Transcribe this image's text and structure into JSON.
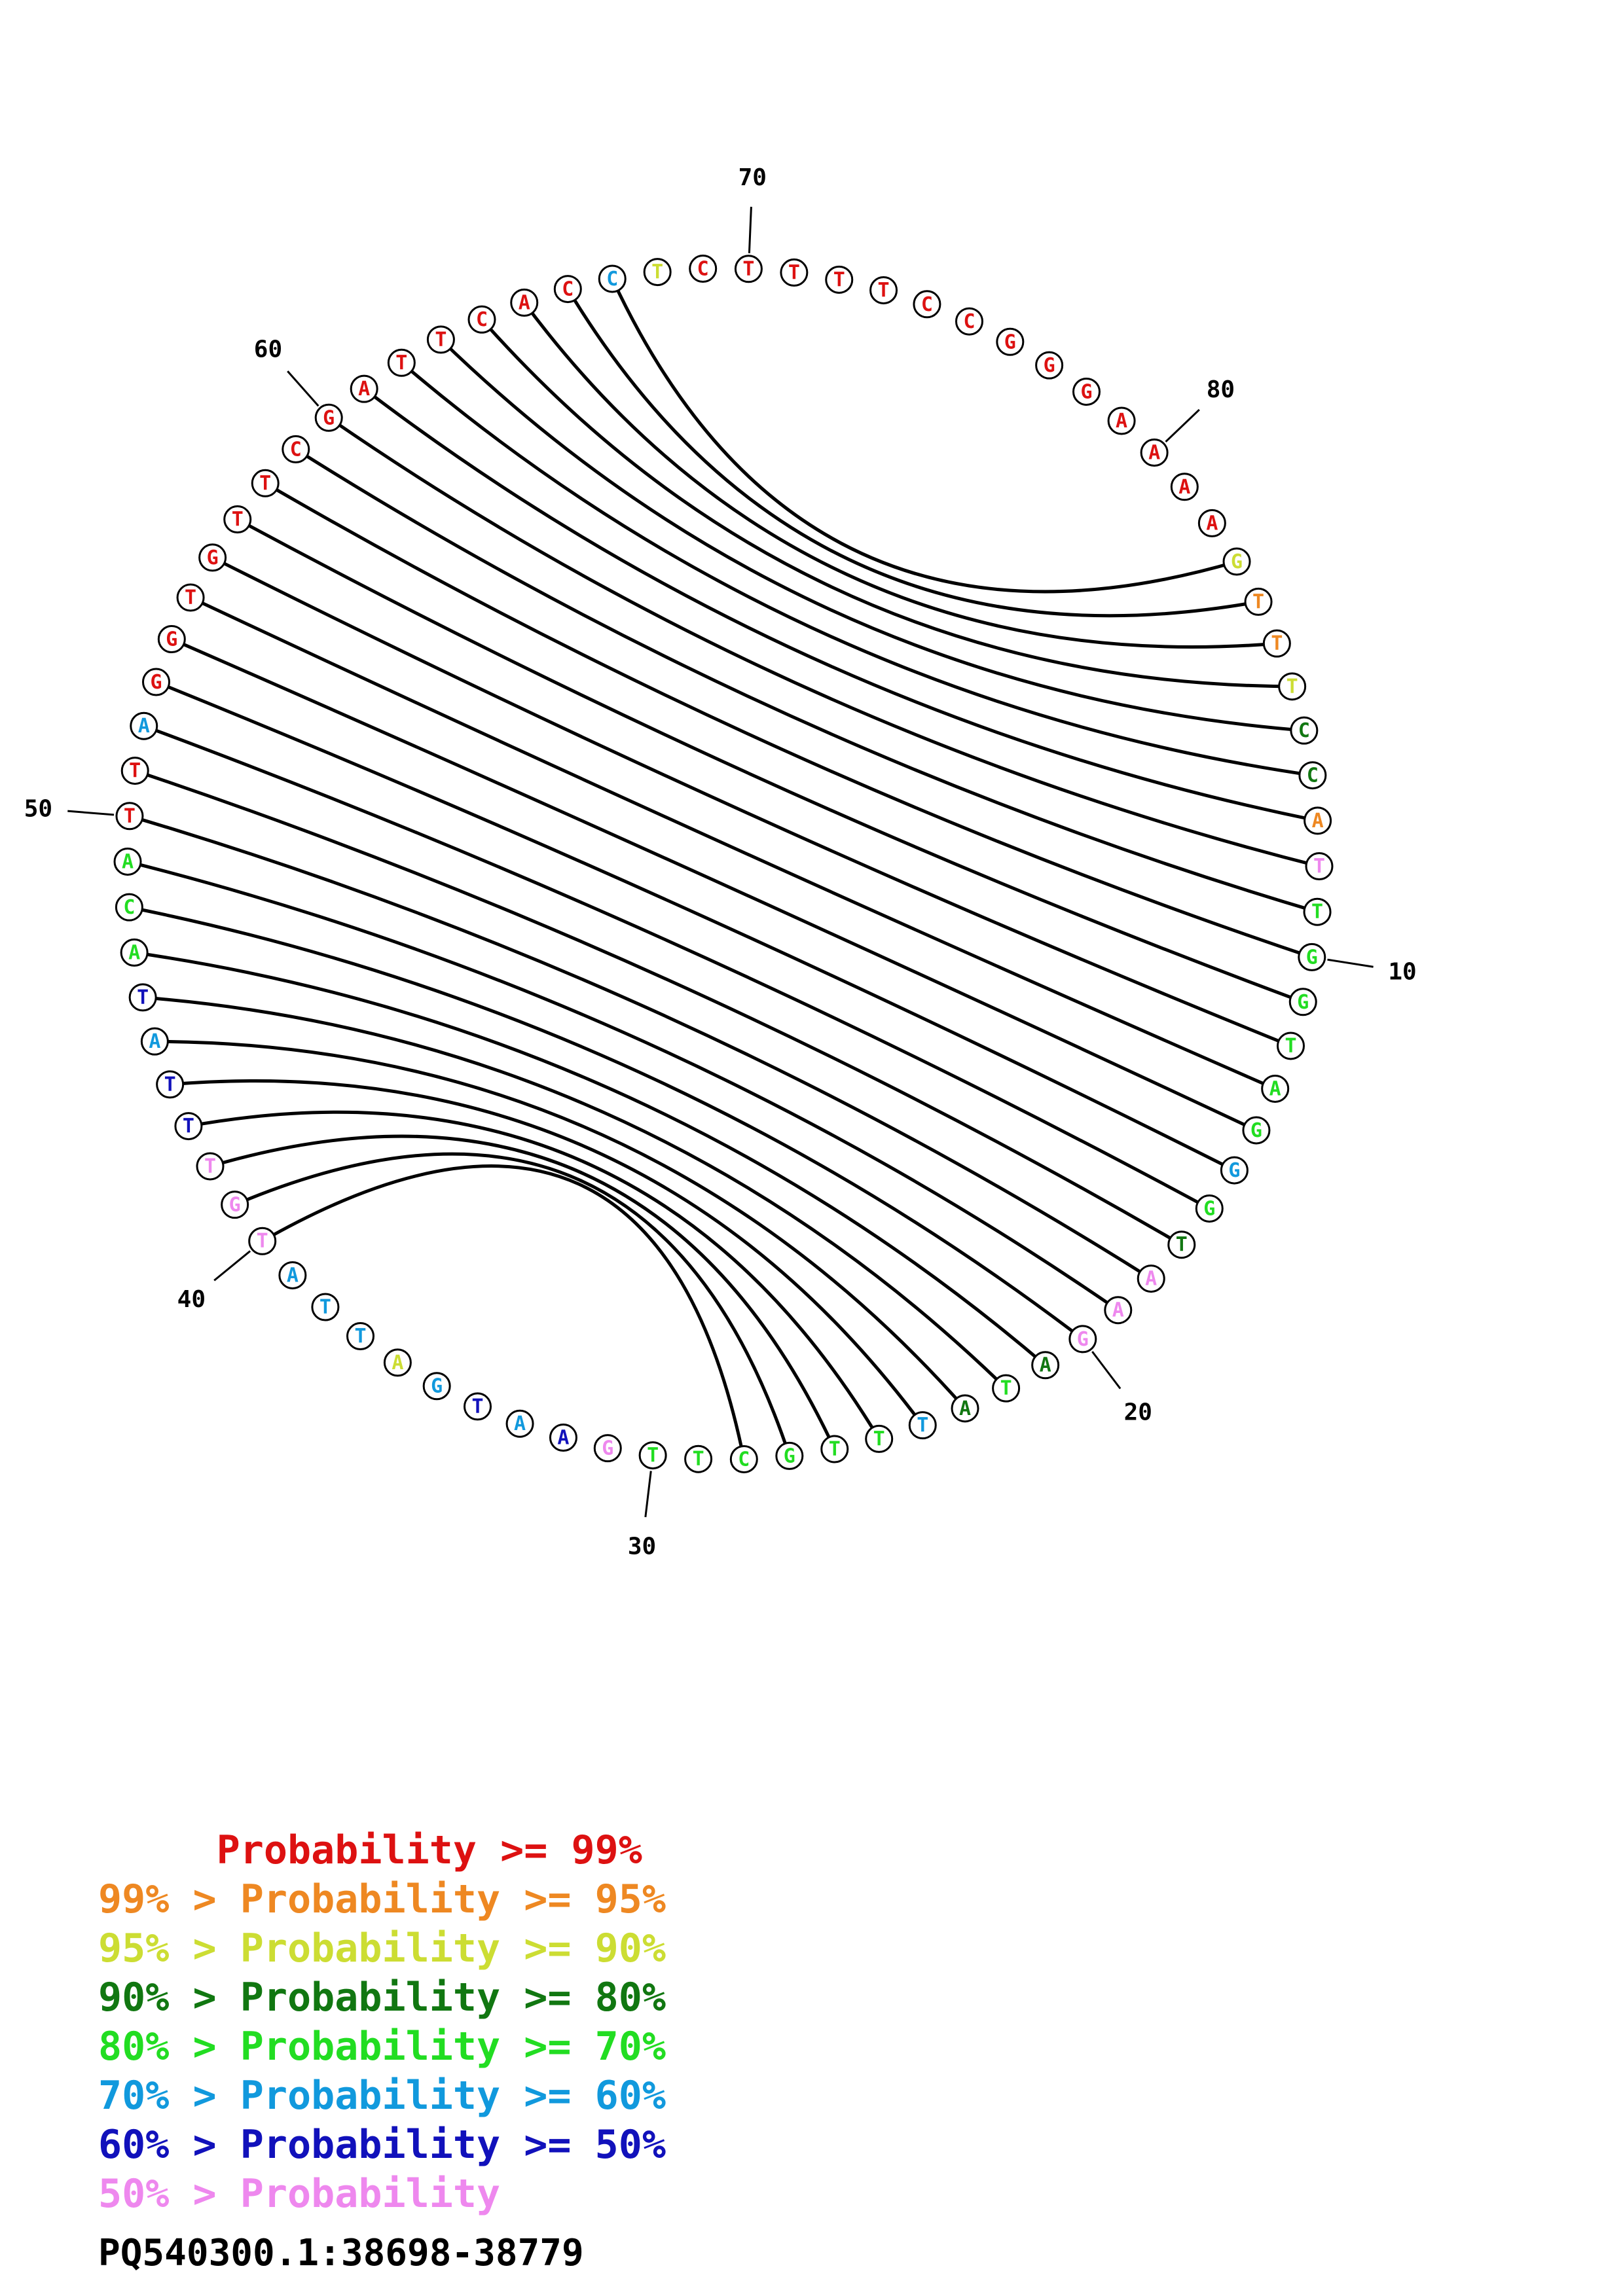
{
  "diagram": {
    "sequence": [
      "G",
      "T",
      "T",
      "T",
      "C",
      "C",
      "A",
      "T",
      "T",
      "G",
      "G",
      "T",
      "A",
      "G",
      "G",
      "G",
      "T",
      "A",
      "A",
      "G",
      "A",
      "T",
      "A",
      "T",
      "T",
      "T",
      "G",
      "C",
      "T",
      "T",
      "G",
      "A",
      "A",
      "T",
      "G",
      "A",
      "T",
      "T",
      "A",
      "T",
      "G",
      "T",
      "T",
      "T",
      "A",
      "T",
      "A",
      "C",
      "A",
      "T",
      "T",
      "A",
      "G",
      "G",
      "T",
      "G",
      "T",
      "T",
      "C",
      "G",
      "A",
      "T",
      "T",
      "C",
      "A",
      "C",
      "C",
      "T",
      "C",
      "T",
      "T",
      "T",
      "T",
      "C",
      "C",
      "G",
      "G",
      "G",
      "A",
      "A",
      "A",
      "A"
    ],
    "base_colors": [
      "#ccdd33",
      "#ee8822",
      "#ee8822",
      "#ccdd33",
      "#117711",
      "#117711",
      "#ee8822",
      "#ee88ee",
      "#22dd22",
      "#22dd22",
      "#22dd22",
      "#22dd22",
      "#22dd22",
      "#22dd22",
      "#1199dd",
      "#22dd22",
      "#117711",
      "#ee88ee",
      "#ee88ee",
      "#ee88ee",
      "#117711",
      "#22dd22",
      "#117711",
      "#1199dd",
      "#22dd22",
      "#22dd22",
      "#22dd22",
      "#22dd22",
      "#22dd22",
      "#22dd22",
      "#ee88ee",
      "#1111bb",
      "#1199dd",
      "#1111bb",
      "#1199dd",
      "#ccdd33",
      "#1199dd",
      "#1199dd",
      "#1199dd",
      "#ee88ee",
      "#ee88ee",
      "#ee88ee",
      "#1111bb",
      "#1111bb",
      "#1199dd",
      "#1111bb",
      "#22dd22",
      "#22dd22",
      "#22dd22",
      "#dd1111",
      "#dd1111",
      "#1199dd",
      "#dd1111",
      "#dd1111",
      "#dd1111",
      "#dd1111",
      "#dd1111",
      "#dd1111",
      "#dd1111",
      "#dd1111",
      "#dd1111",
      "#dd1111",
      "#dd1111",
      "#dd1111",
      "#dd1111",
      "#dd1111",
      "#1199dd",
      "#ccdd33",
      "#dd1111",
      "#dd1111",
      "#dd1111",
      "#dd1111",
      "#dd1111",
      "#dd1111",
      "#dd1111",
      "#dd1111",
      "#dd1111",
      "#dd1111",
      "#dd1111",
      "#dd1111",
      "#dd1111",
      "#dd1111"
    ],
    "pairs": [
      [
        1,
        67
      ],
      [
        2,
        66
      ],
      [
        3,
        65
      ],
      [
        4,
        64
      ],
      [
        5,
        63
      ],
      [
        6,
        62
      ],
      [
        7,
        61
      ],
      [
        8,
        60
      ],
      [
        9,
        59
      ],
      [
        10,
        58
      ],
      [
        11,
        57
      ],
      [
        12,
        56
      ],
      [
        13,
        55
      ],
      [
        14,
        54
      ],
      [
        15,
        53
      ],
      [
        16,
        52
      ],
      [
        17,
        51
      ],
      [
        18,
        50
      ],
      [
        19,
        49
      ],
      [
        20,
        48
      ],
      [
        21,
        47
      ],
      [
        22,
        46
      ],
      [
        23,
        45
      ],
      [
        24,
        44
      ],
      [
        25,
        43
      ],
      [
        26,
        42
      ],
      [
        27,
        41
      ],
      [
        28,
        40
      ]
    ],
    "tick_labels": [
      {
        "index": 10,
        "label": "10"
      },
      {
        "index": 20,
        "label": "20"
      },
      {
        "index": 30,
        "label": "30"
      },
      {
        "index": 40,
        "label": "40"
      },
      {
        "index": 50,
        "label": "50"
      },
      {
        "index": 60,
        "label": "60"
      },
      {
        "index": 70,
        "label": "70"
      },
      {
        "index": 80,
        "label": "80"
      }
    ]
  },
  "legend": [
    {
      "text": "     Probability >= 99%",
      "color": "#dd1111"
    },
    {
      "text": "99% > Probability >= 95%",
      "color": "#ee8822"
    },
    {
      "text": "95% > Probability >= 90%",
      "color": "#ccdd33"
    },
    {
      "text": "90% > Probability >= 80%",
      "color": "#117711"
    },
    {
      "text": "80% > Probability >= 70%",
      "color": "#22dd22"
    },
    {
      "text": "70% > Probability >= 60%",
      "color": "#1199dd"
    },
    {
      "text": "60% > Probability >= 50%",
      "color": "#1111bb"
    },
    {
      "text": "50% > Probability",
      "color": "#ee88ee"
    }
  ],
  "sequence_id": "PQ540300.1:38698-38779"
}
